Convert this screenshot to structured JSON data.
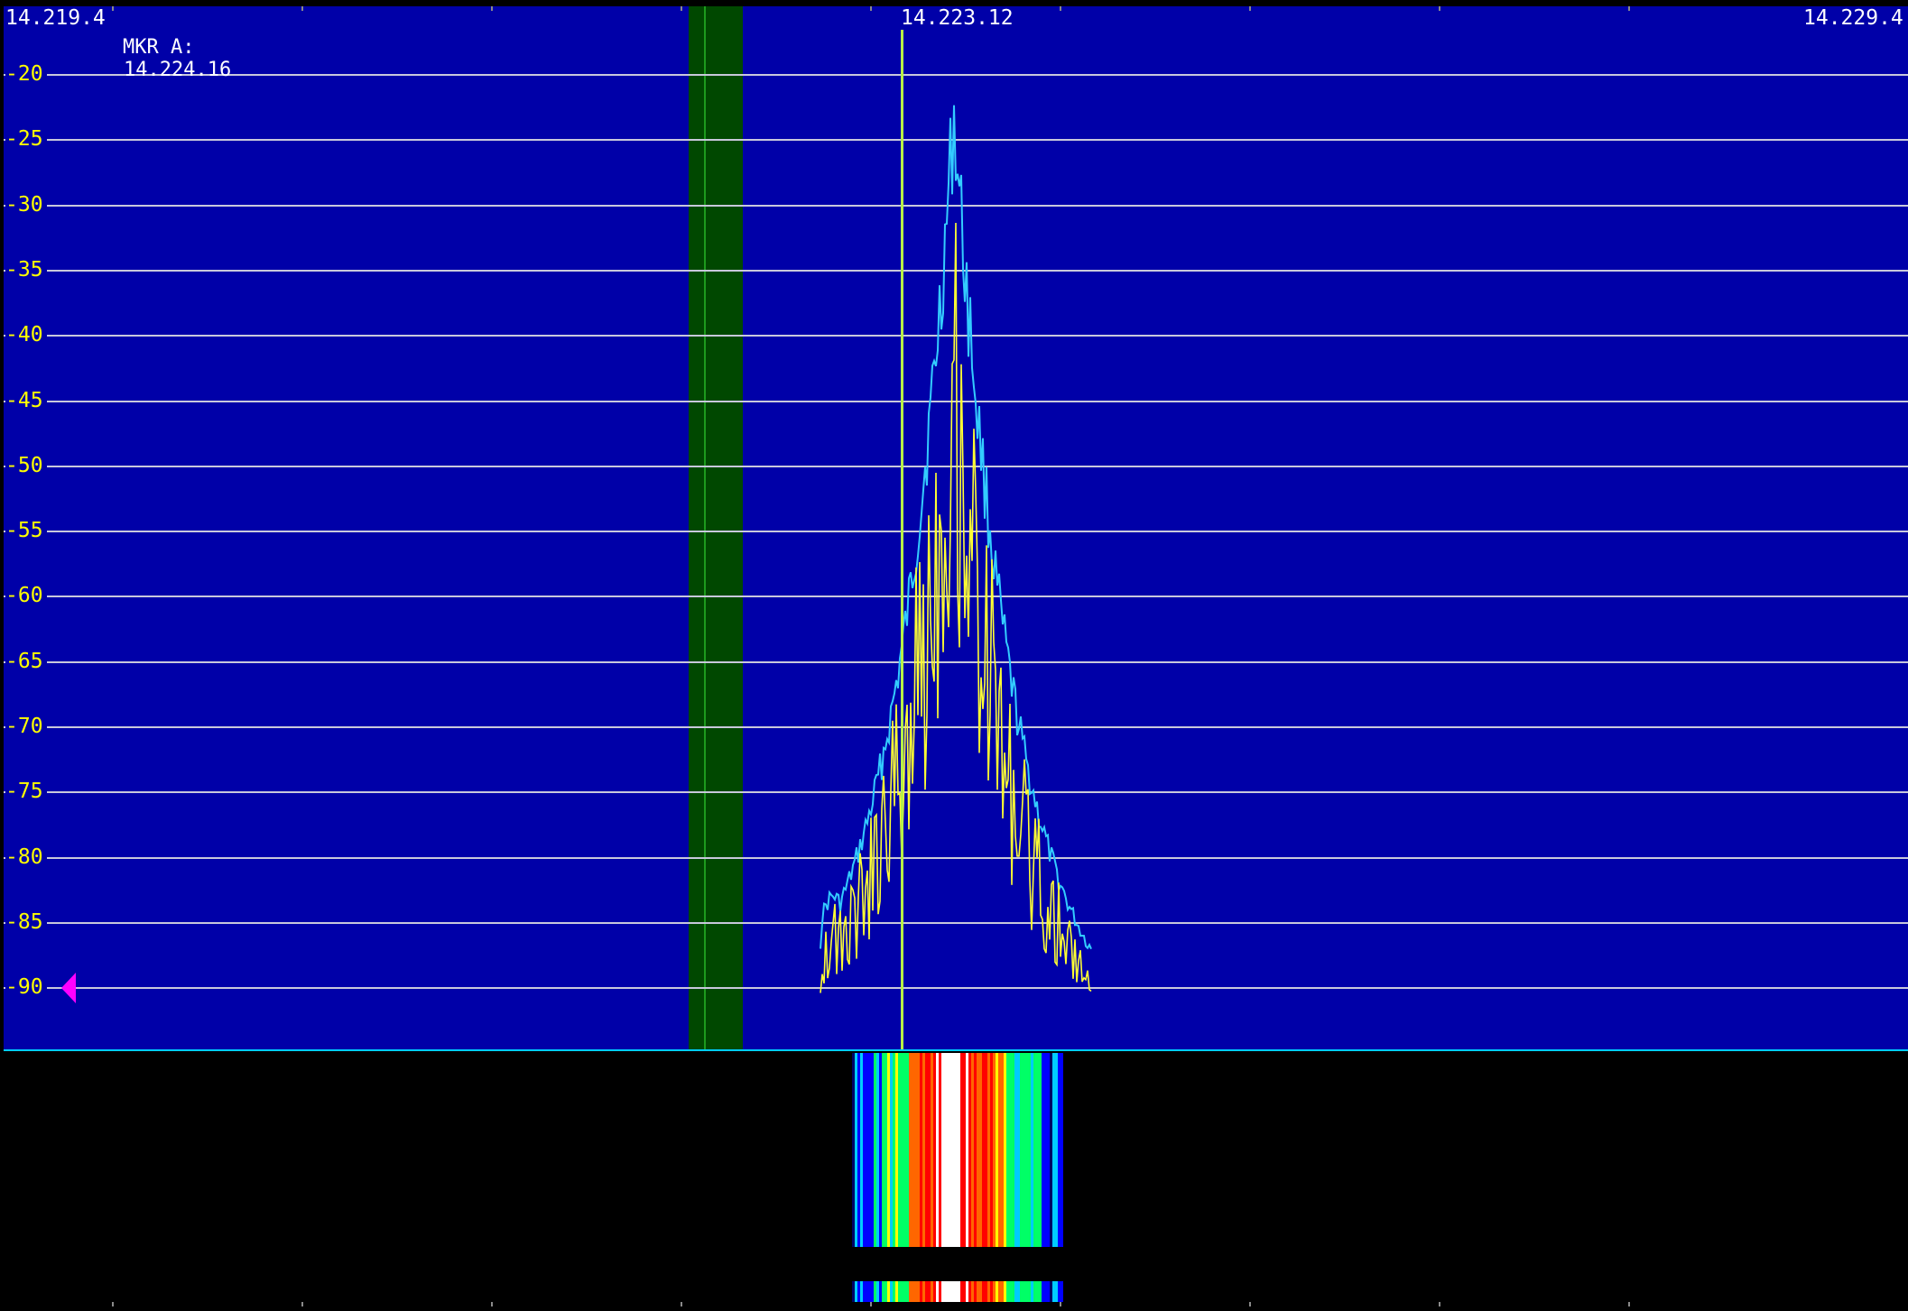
{
  "panadapter": {
    "freq_left": "14.219.4",
    "freq_center": "14.223.12",
    "freq_right": "14.229.4",
    "marker": {
      "label": "MKR A:",
      "value": "14.224.16"
    },
    "dbm_scale": [
      "-20",
      "-25",
      "-30",
      "-35",
      "-40",
      "-45",
      "-50",
      "-55",
      "-60",
      "-65",
      "-70",
      "-75",
      "-80",
      "-85",
      "-90"
    ],
    "colors": {
      "background": "#0000a8",
      "grid": "#c8c8dc",
      "scale_text": "#ffff00",
      "trace_peak": "#33ccff",
      "trace_live": "#ffff33",
      "filter_passband": "#004800",
      "tune_marker": "#b6f048",
      "ref_level_arrow": "#ff00ff"
    },
    "ref_level_icon": "triangle-left-icon"
  },
  "waterfall": {
    "colors": [
      "#000066",
      "#0000ff",
      "#00ccff",
      "#00ff66",
      "#ffff00",
      "#ff6600",
      "#ff0000",
      "#ffffff"
    ]
  }
}
